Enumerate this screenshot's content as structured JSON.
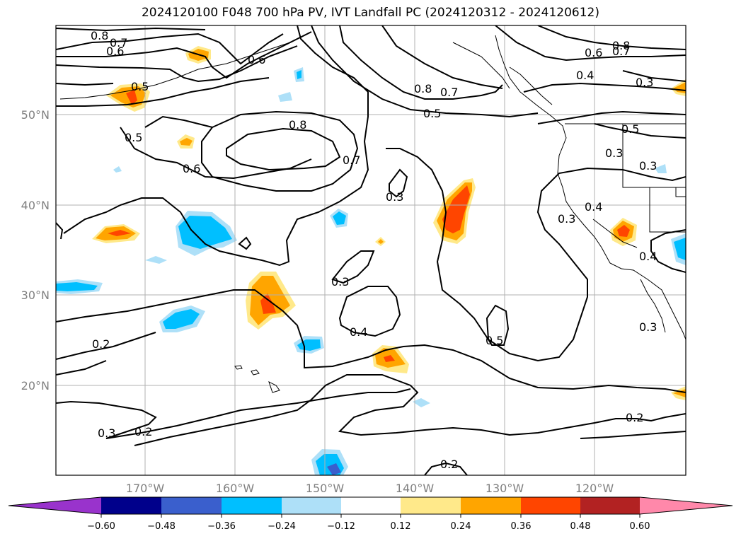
{
  "title": "2024120100 F048 700 hPa PV, IVT Landfall PC (2024120312 - 2024120612)",
  "latitude_labels": [
    "50°N",
    "40°N",
    "30°N",
    "20°N"
  ],
  "longitude_labels": [
    "170°W",
    "160°W",
    "150°W",
    "140°W",
    "130°W",
    "120°W"
  ],
  "contour_labels": [
    "0.8",
    "0.7",
    "0.6",
    "0.5",
    "0.8",
    "0.7",
    "0.5",
    "0.8",
    "0.7",
    "0.6",
    "0.8",
    "0.6",
    "0.7",
    "0.4",
    "0.3",
    "0.5",
    "0.3",
    "0.4",
    "0.3",
    "0.4",
    "0.3",
    "0.3",
    "0.4",
    "0.5",
    "0.3",
    "0.2",
    "0.3",
    "0.2",
    "0.2",
    "0.2",
    "0.6",
    "0.3",
    "0.5"
  ],
  "colorbar": {
    "ticks": [
      "−0.60",
      "−0.48",
      "−0.36",
      "−0.24",
      "−0.12",
      "0.12",
      "0.24",
      "0.36",
      "0.48",
      "0.60"
    ],
    "colors": [
      "#9933cc",
      "#00008b",
      "#3a5fcd",
      "#00bfff",
      "#aee0f8",
      "#ffffff",
      "#ffe98a",
      "#ffa500",
      "#ff4500",
      "#b22222",
      "#ff88aa"
    ]
  },
  "map_colors": {
    "negative_light": "#aee0f8",
    "negative_mid": "#00bfff",
    "negative_dark": "#3a5fcd",
    "positive_light": "#ffe98a",
    "positive_mid": "#ffa500",
    "positive_dark": "#ff4500"
  }
}
